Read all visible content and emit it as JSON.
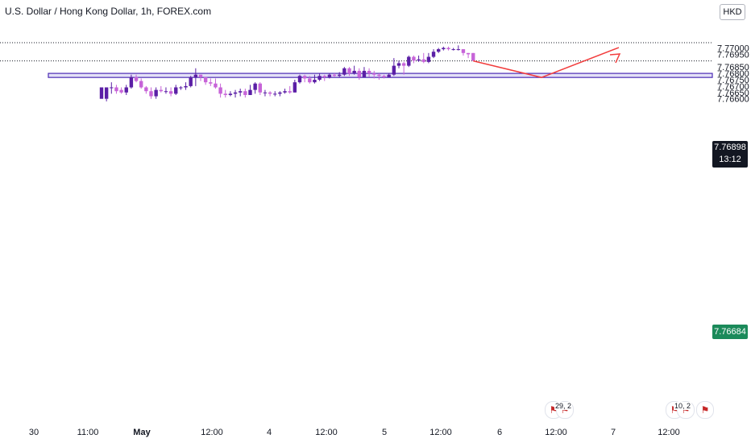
{
  "header": {
    "title": "U.S. Dollar / Hong Kong Dollar, 1h, FOREX.com",
    "currency": "HKD"
  },
  "price_tags": {
    "last_price": "7.76898",
    "countdown": "13:12",
    "ref_price": "7.76684"
  },
  "events": [
    {
      "badge": "29, 2",
      "flag": "us-flag-icon"
    },
    {
      "badge": "10, 2",
      "flag": "us-flag-icon"
    }
  ],
  "colors": {
    "candle_up": "#5b1fa6",
    "candle_down": "#c764d8",
    "zone_fill": "#e4e1f7",
    "zone_border": "#4b2bb4",
    "projection": "#f23d3d",
    "last_tag": "#131722",
    "ref_tag": "#1b8a5a"
  },
  "chart_data": {
    "type": "candlestick",
    "symbol": "USDHKD",
    "timeframe": "1h",
    "ylim": [
      7.7657,
      7.7725
    ],
    "y_ticks": [
      "7.76600",
      "7.76650",
      "7.76700",
      "7.76750",
      "7.76800",
      "7.76850",
      "7.76950",
      "7.77000"
    ],
    "x_ticks": [
      "30",
      "11:00",
      "May",
      "12:00",
      "4",
      "12:00",
      "5",
      "12:00",
      "6",
      "12:00",
      "7",
      "12:00"
    ],
    "last_price": 7.76898,
    "ref_price": 7.76684,
    "zone": {
      "low": 7.76768,
      "high": 7.768
    },
    "projection": [
      7.76898,
      7.76768,
      7.77003
    ],
    "candles": [
      [
        7.766,
        7.7669,
        7.7662,
        7.7662
      ],
      [
        7.766,
        7.7669,
        7.766,
        7.7658
      ],
      [
        7.7669,
        7.7669,
        7.7673,
        7.7664
      ],
      [
        7.7669,
        7.7666,
        7.7671,
        7.7664
      ],
      [
        7.7667,
        7.7665,
        7.7669,
        7.7664
      ],
      [
        7.7665,
        7.7669,
        7.7671,
        7.7663
      ],
      [
        7.7669,
        7.7677,
        7.7679,
        7.7668
      ],
      [
        7.7677,
        7.7674,
        7.7679,
        7.7673
      ],
      [
        7.7674,
        7.7669,
        7.7676,
        7.7668
      ],
      [
        7.7669,
        7.7666,
        7.767,
        7.7664
      ],
      [
        7.7666,
        7.7662,
        7.7669,
        7.766
      ],
      [
        7.7662,
        7.7667,
        7.7669,
        7.766
      ],
      [
        7.7667,
        7.7666,
        7.767,
        7.7665
      ],
      [
        7.7666,
        7.7666,
        7.7669,
        7.7664
      ],
      [
        7.7666,
        7.7664,
        7.7669,
        7.7662
      ],
      [
        7.7664,
        7.7669,
        7.7671,
        7.7663
      ],
      [
        7.7669,
        7.7669,
        7.767,
        7.7667
      ],
      [
        7.7669,
        7.767,
        7.7673,
        7.7667
      ],
      [
        7.767,
        7.7677,
        7.7678,
        7.7669
      ],
      [
        7.7677,
        7.7679,
        7.7684,
        7.767
      ],
      [
        7.7679,
        7.7677,
        7.7679,
        7.7674
      ],
      [
        7.7677,
        7.7673,
        7.7677,
        7.7671
      ],
      [
        7.7673,
        7.7672,
        7.7676,
        7.767
      ],
      [
        7.7672,
        7.7669,
        7.7676,
        7.7668
      ],
      [
        7.7669,
        7.7664,
        7.7672,
        7.7661
      ],
      [
        7.7664,
        7.7663,
        7.7667,
        7.7661
      ],
      [
        7.7663,
        7.7664,
        7.7666,
        7.7662
      ],
      [
        7.7664,
        7.7665,
        7.7667,
        7.7661
      ],
      [
        7.7665,
        7.7666,
        7.7668,
        7.7662
      ],
      [
        7.7666,
        7.7663,
        7.7668,
        7.7661
      ],
      [
        7.7663,
        7.7667,
        7.7671,
        7.7663
      ],
      [
        7.7667,
        7.7672,
        7.7673,
        7.7664
      ],
      [
        7.7672,
        7.7665,
        7.7673,
        7.7663
      ],
      [
        7.7665,
        7.7665,
        7.7667,
        7.7662
      ],
      [
        7.7665,
        7.7664,
        7.7666,
        7.7662
      ],
      [
        7.7664,
        7.7664,
        7.7666,
        7.7662
      ],
      [
        7.7664,
        7.7665,
        7.7666,
        7.7662
      ],
      [
        7.7665,
        7.7666,
        7.7668,
        7.7664
      ],
      [
        7.7666,
        7.7665,
        7.767,
        7.7664
      ],
      [
        7.7665,
        7.7673,
        7.7675,
        7.7665
      ],
      [
        7.7673,
        7.7678,
        7.7679,
        7.7672
      ],
      [
        7.7678,
        7.7676,
        7.7679,
        7.7673
      ],
      [
        7.7676,
        7.7673,
        7.7678,
        7.7672
      ],
      [
        7.7673,
        7.7675,
        7.7679,
        7.7672
      ],
      [
        7.7675,
        7.7678,
        7.768,
        7.7674
      ],
      [
        7.7678,
        7.7677,
        7.7679,
        7.7674
      ],
      [
        7.7677,
        7.7679,
        7.768,
        7.7676
      ],
      [
        7.7679,
        7.7678,
        7.768,
        7.7677
      ],
      [
        7.7678,
        7.7679,
        7.7681,
        7.7677
      ],
      [
        7.7679,
        7.7684,
        7.7685,
        7.7678
      ],
      [
        7.7684,
        7.768,
        7.7685,
        7.7678
      ],
      [
        7.768,
        7.7682,
        7.7686,
        7.7679
      ],
      [
        7.7682,
        7.7677,
        7.7684,
        7.7675
      ],
      [
        7.7677,
        7.7682,
        7.7685,
        7.7677
      ],
      [
        7.7682,
        7.768,
        7.7684,
        7.7677
      ],
      [
        7.768,
        7.7679,
        7.7682,
        7.7676
      ],
      [
        7.7679,
        7.7678,
        7.768,
        7.7675
      ],
      [
        7.7678,
        7.7677,
        7.7679,
        7.7676
      ],
      [
        7.7677,
        7.7679,
        7.768,
        7.7677
      ],
      [
        7.7679,
        7.7686,
        7.7692,
        7.7678
      ],
      [
        7.7686,
        7.7688,
        7.769,
        7.7684
      ],
      [
        7.7688,
        7.7686,
        7.7689,
        7.7679
      ],
      [
        7.7686,
        7.7693,
        7.7694,
        7.7685
      ],
      [
        7.7693,
        7.769,
        7.7694,
        7.7688
      ],
      [
        7.769,
        7.7691,
        7.7694,
        7.7689
      ],
      [
        7.7691,
        7.7689,
        7.7696,
        7.7688
      ],
      [
        7.7689,
        7.7693,
        7.7696,
        7.7688
      ],
      [
        7.7693,
        7.7697,
        7.7699,
        7.7692
      ],
      [
        7.7697,
        7.7699,
        7.77,
        7.7696
      ],
      [
        7.7699,
        7.77,
        7.7701,
        7.7698
      ],
      [
        7.77,
        7.7699,
        7.7701,
        7.7698
      ],
      [
        7.7699,
        7.7699,
        7.77,
        7.7698
      ],
      [
        7.7699,
        7.7699,
        7.7702,
        7.7698
      ],
      [
        7.7699,
        7.7696,
        7.7699,
        7.7694
      ],
      [
        7.7696,
        7.7695,
        7.7696,
        7.7692
      ],
      [
        7.7696,
        7.769,
        7.7696,
        7.76898
      ]
    ]
  }
}
